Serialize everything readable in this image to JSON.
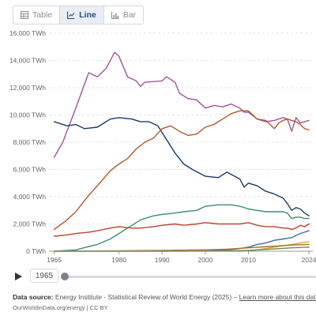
{
  "tabs": [
    {
      "label": "Table",
      "icon": "table-icon",
      "active": false
    },
    {
      "label": "Line",
      "icon": "line-chart-icon",
      "active": true
    },
    {
      "label": "Bar",
      "icon": "bar-chart-icon",
      "active": false
    }
  ],
  "controls": {
    "year": "1965"
  },
  "footer": {
    "source_label": "Data source:",
    "source_text": " Energy Institute - Statistical Review of World Energy (2025) – ",
    "source_link": "Learn more about this data",
    "credit": "OurWorldinData.org/energy | CC BY"
  },
  "chart_data": {
    "type": "line",
    "xlim": [
      1965,
      2024
    ],
    "ylim": [
      0,
      16000
    ],
    "y_ticks": [
      0,
      2000,
      4000,
      6000,
      8000,
      10000,
      12000,
      14000,
      16000
    ],
    "y_tick_labels": [
      "0 TWh",
      "2,000 TWh",
      "4,000 TWh",
      "6,000 TWh",
      "8,000 TWh",
      "10,000 TWh",
      "12,000 TWh",
      "14,000 TWh",
      "16,000 TWh"
    ],
    "x_ticks": [
      1965,
      1980,
      1990,
      2000,
      2010,
      2024
    ],
    "x_tick_labels": [
      "1965",
      "1980",
      "1990",
      "2000",
      "2010",
      "2024"
    ],
    "grid": true,
    "series": [
      {
        "color": "#a2559c",
        "points": [
          [
            1965,
            6900
          ],
          [
            1967,
            8000
          ],
          [
            1970,
            10500
          ],
          [
            1973,
            13100
          ],
          [
            1975,
            12800
          ],
          [
            1977,
            13400
          ],
          [
            1979,
            14600
          ],
          [
            1980,
            14300
          ],
          [
            1982,
            12800
          ],
          [
            1984,
            12500
          ],
          [
            1985,
            12100
          ],
          [
            1986,
            12400
          ],
          [
            1990,
            12500
          ],
          [
            1991,
            12800
          ],
          [
            1993,
            12400
          ],
          [
            1994,
            11600
          ],
          [
            1996,
            11200
          ],
          [
            1998,
            11100
          ],
          [
            2000,
            10500
          ],
          [
            2002,
            10700
          ],
          [
            2004,
            10600
          ],
          [
            2006,
            10800
          ],
          [
            2008,
            10500
          ],
          [
            2009,
            10200
          ],
          [
            2010,
            10200
          ],
          [
            2012,
            9700
          ],
          [
            2014,
            9500
          ],
          [
            2016,
            9600
          ],
          [
            2018,
            9800
          ],
          [
            2019,
            9700
          ],
          [
            2020,
            8800
          ],
          [
            2021,
            9800
          ],
          [
            2022,
            9400
          ],
          [
            2023,
            9500
          ],
          [
            2024,
            9600
          ]
        ]
      },
      {
        "color": "#1a3a6e",
        "points": [
          [
            1965,
            9500
          ],
          [
            1968,
            9200
          ],
          [
            1970,
            9300
          ],
          [
            1972,
            9000
          ],
          [
            1975,
            9100
          ],
          [
            1978,
            9700
          ],
          [
            1980,
            9800
          ],
          [
            1983,
            9700
          ],
          [
            1985,
            9500
          ],
          [
            1987,
            9500
          ],
          [
            1989,
            9200
          ],
          [
            1990,
            8700
          ],
          [
            1993,
            7200
          ],
          [
            1995,
            6400
          ],
          [
            1997,
            6000
          ],
          [
            2000,
            5500
          ],
          [
            2003,
            5400
          ],
          [
            2005,
            5800
          ],
          [
            2008,
            5300
          ],
          [
            2009,
            4700
          ],
          [
            2010,
            5000
          ],
          [
            2012,
            4800
          ],
          [
            2014,
            4400
          ],
          [
            2016,
            4200
          ],
          [
            2018,
            3900
          ],
          [
            2019,
            3500
          ],
          [
            2020,
            3000
          ],
          [
            2021,
            3200
          ],
          [
            2022,
            3100
          ],
          [
            2023,
            2800
          ],
          [
            2024,
            2600
          ]
        ]
      },
      {
        "color": "#b6562b",
        "points": [
          [
            1965,
            1600
          ],
          [
            1968,
            2300
          ],
          [
            1970,
            2900
          ],
          [
            1973,
            4100
          ],
          [
            1975,
            4800
          ],
          [
            1978,
            5900
          ],
          [
            1980,
            6400
          ],
          [
            1982,
            6800
          ],
          [
            1984,
            7500
          ],
          [
            1986,
            8000
          ],
          [
            1988,
            8300
          ],
          [
            1990,
            9000
          ],
          [
            1992,
            9200
          ],
          [
            1994,
            8800
          ],
          [
            1996,
            8500
          ],
          [
            1998,
            8600
          ],
          [
            2000,
            9100
          ],
          [
            2002,
            9300
          ],
          [
            2004,
            9700
          ],
          [
            2006,
            10100
          ],
          [
            2008,
            10300
          ],
          [
            2010,
            10300
          ],
          [
            2012,
            9700
          ],
          [
            2014,
            9600
          ],
          [
            2016,
            9000
          ],
          [
            2017,
            9400
          ],
          [
            2018,
            9600
          ],
          [
            2019,
            9700
          ],
          [
            2020,
            9600
          ],
          [
            2021,
            9500
          ],
          [
            2022,
            9300
          ],
          [
            2023,
            9000
          ],
          [
            2024,
            8900
          ]
        ]
      },
      {
        "color": "#3b8e74",
        "points": [
          [
            1965,
            0
          ],
          [
            1970,
            100
          ],
          [
            1975,
            500
          ],
          [
            1978,
            900
          ],
          [
            1980,
            1300
          ],
          [
            1983,
            1900
          ],
          [
            1985,
            2300
          ],
          [
            1988,
            2600
          ],
          [
            1990,
            2700
          ],
          [
            1993,
            2800
          ],
          [
            1995,
            2900
          ],
          [
            1998,
            3000
          ],
          [
            2000,
            3300
          ],
          [
            2003,
            3400
          ],
          [
            2006,
            3400
          ],
          [
            2008,
            3300
          ],
          [
            2010,
            3100
          ],
          [
            2012,
            3000
          ],
          [
            2014,
            2900
          ],
          [
            2016,
            2900
          ],
          [
            2018,
            2900
          ],
          [
            2019,
            2800
          ],
          [
            2020,
            2400
          ],
          [
            2021,
            2500
          ],
          [
            2022,
            2500
          ],
          [
            2023,
            2400
          ],
          [
            2024,
            2400
          ]
        ]
      },
      {
        "color": "#c3402f",
        "points": [
          [
            1965,
            1100
          ],
          [
            1968,
            1200
          ],
          [
            1970,
            1300
          ],
          [
            1973,
            1400
          ],
          [
            1975,
            1500
          ],
          [
            1978,
            1700
          ],
          [
            1980,
            1800
          ],
          [
            1983,
            1700
          ],
          [
            1985,
            1700
          ],
          [
            1988,
            1800
          ],
          [
            1990,
            1900
          ],
          [
            1993,
            2000
          ],
          [
            1995,
            1900
          ],
          [
            1998,
            2000
          ],
          [
            2000,
            2100
          ],
          [
            2003,
            2000
          ],
          [
            2006,
            2000
          ],
          [
            2008,
            2000
          ],
          [
            2010,
            2100
          ],
          [
            2012,
            1900
          ],
          [
            2014,
            1800
          ],
          [
            2016,
            1800
          ],
          [
            2018,
            1700
          ],
          [
            2019,
            1700
          ],
          [
            2020,
            1600
          ],
          [
            2021,
            1700
          ],
          [
            2022,
            1900
          ],
          [
            2023,
            1800
          ],
          [
            2024,
            2000
          ]
        ]
      },
      {
        "color": "#4c6a9c",
        "points": [
          [
            1965,
            0
          ],
          [
            1995,
            0
          ],
          [
            2000,
            30
          ],
          [
            2005,
            100
          ],
          [
            2008,
            200
          ],
          [
            2010,
            300
          ],
          [
            2012,
            500
          ],
          [
            2014,
            600
          ],
          [
            2016,
            800
          ],
          [
            2018,
            900
          ],
          [
            2020,
            1000
          ],
          [
            2022,
            1300
          ],
          [
            2024,
            1500
          ]
        ]
      },
      {
        "color": "#e0a43a",
        "points": [
          [
            1965,
            0
          ],
          [
            2008,
            0
          ],
          [
            2010,
            30
          ],
          [
            2012,
            100
          ],
          [
            2014,
            200
          ],
          [
            2016,
            300
          ],
          [
            2018,
            400
          ],
          [
            2020,
            500
          ],
          [
            2022,
            600
          ],
          [
            2024,
            700
          ]
        ]
      },
      {
        "color": "#a7722f",
        "points": [
          [
            1965,
            0
          ],
          [
            1980,
            30
          ],
          [
            1990,
            60
          ],
          [
            2000,
            100
          ],
          [
            2005,
            150
          ],
          [
            2010,
            250
          ],
          [
            2015,
            350
          ],
          [
            2020,
            450
          ],
          [
            2024,
            500
          ]
        ]
      },
      {
        "color": "#6b8f3d",
        "points": [
          [
            1965,
            0
          ],
          [
            2000,
            10
          ],
          [
            2010,
            60
          ],
          [
            2015,
            150
          ],
          [
            2020,
            250
          ],
          [
            2024,
            300
          ]
        ]
      }
    ]
  }
}
